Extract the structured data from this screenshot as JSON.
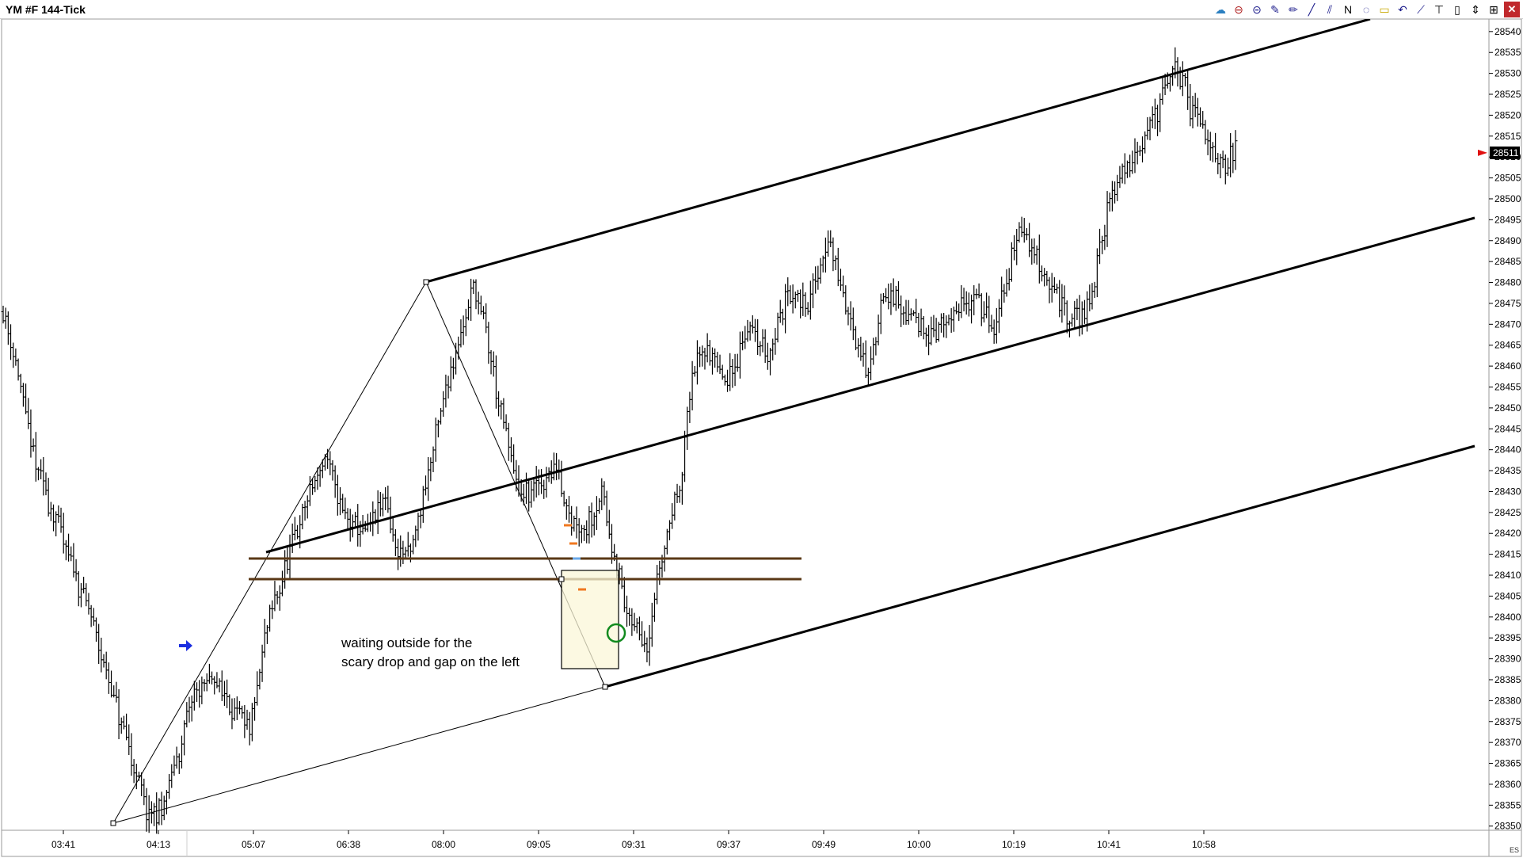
{
  "window": {
    "title": "YM #F 144-Tick"
  },
  "toolbar": [
    {
      "name": "data-series-icon",
      "glyph": "☁",
      "color": "#2a7fc0"
    },
    {
      "name": "indicators-icon",
      "glyph": "⊖",
      "color": "#b02020"
    },
    {
      "name": "strategy-icon",
      "glyph": "⊝",
      "color": "#1a1a8a"
    },
    {
      "name": "chart-trader-icon",
      "glyph": "✎",
      "color": "#1a1a8a"
    },
    {
      "name": "pencil-icon",
      "glyph": "✏",
      "color": "#1a1a8a"
    },
    {
      "name": "line-tool-icon",
      "glyph": "╱",
      "color": "#1a1a8a"
    },
    {
      "name": "channel-tool-icon",
      "glyph": "⫽",
      "color": "#1a1a8a"
    },
    {
      "name": "text-tool-icon",
      "glyph": "N",
      "color": "#000000"
    },
    {
      "name": "ellipse-tool-icon",
      "glyph": "◌",
      "color": "#1a1a8a"
    },
    {
      "name": "rectangle-tool-icon",
      "glyph": "▭",
      "color": "#c8a800"
    },
    {
      "name": "arc-tool-icon",
      "glyph": "↶",
      "color": "#1a1a8a"
    },
    {
      "name": "zigzag-tool-icon",
      "glyph": "⟋",
      "color": "#1a1a8a"
    },
    {
      "name": "ruler-tool-icon",
      "glyph": "⊤",
      "color": "#000000"
    },
    {
      "name": "lock-icon",
      "glyph": "▯",
      "color": "#000000"
    },
    {
      "name": "pan-icon",
      "glyph": "⇕",
      "color": "#000000"
    },
    {
      "name": "zoom-icon",
      "glyph": "⊞",
      "color": "#000000"
    },
    {
      "name": "close-icon",
      "glyph": "✕",
      "color": "#ffffff"
    }
  ],
  "annotation": {
    "line1": "waiting outside for the",
    "line2": "scary drop and gap on the left"
  },
  "right_marker": "ES",
  "chart_data": {
    "type": "ohlc",
    "title": "YM #F 144-Tick",
    "ylim": [
      28349,
      28543
    ],
    "y_ticks": [
      28350,
      28355,
      28360,
      28365,
      28370,
      28375,
      28380,
      28385,
      28390,
      28395,
      28400,
      28405,
      28410,
      28415,
      28420,
      28425,
      28430,
      28435,
      28440,
      28445,
      28450,
      28455,
      28460,
      28465,
      28470,
      28475,
      28480,
      28485,
      28490,
      28495,
      28500,
      28505,
      28510,
      28515,
      28520,
      28525,
      28530,
      28535,
      28540
    ],
    "x_labels": [
      "03:41",
      "04:13",
      "05:07",
      "06:38",
      "08:00",
      "09:05",
      "09:31",
      "09:37",
      "09:49",
      "10:00",
      "10:19",
      "10:41",
      "10:58"
    ],
    "last_price": "28511",
    "bar_count": 300,
    "path": [
      [
        0,
        28473
      ],
      [
        4,
        28464
      ],
      [
        12,
        28438
      ],
      [
        24,
        28418
      ],
      [
        35,
        28400
      ],
      [
        45,
        28378
      ],
      [
        52,
        28364
      ],
      [
        58,
        28352
      ],
      [
        63,
        28354
      ],
      [
        70,
        28368
      ],
      [
        76,
        28382
      ],
      [
        84,
        28385
      ],
      [
        92,
        28378
      ],
      [
        98,
        28372
      ],
      [
        105,
        28398
      ],
      [
        114,
        28415
      ],
      [
        122,
        28430
      ],
      [
        128,
        28438
      ],
      [
        136,
        28424
      ],
      [
        144,
        28420
      ],
      [
        152,
        28428
      ],
      [
        156,
        28416
      ],
      [
        162,
        28415
      ],
      [
        170,
        28438
      ],
      [
        178,
        28460
      ],
      [
        184,
        28472
      ],
      [
        187,
        28480
      ],
      [
        192,
        28468
      ],
      [
        198,
        28448
      ],
      [
        206,
        28428
      ],
      [
        214,
        28432
      ],
      [
        220,
        28436
      ],
      [
        226,
        28423
      ],
      [
        232,
        28422
      ],
      [
        238,
        28430
      ],
      [
        242,
        28418
      ],
      [
        248,
        28400
      ],
      [
        252,
        28397
      ],
      [
        256,
        28394
      ],
      [
        260,
        28408
      ],
      [
        264,
        28420
      ],
      [
        270,
        28436
      ],
      [
        274,
        28458
      ],
      [
        280,
        28465
      ],
      [
        288,
        28455
      ],
      [
        296,
        28470
      ],
      [
        304,
        28462
      ],
      [
        312,
        28478
      ],
      [
        320,
        28475
      ],
      [
        328,
        28490
      ],
      [
        336,
        28472
      ],
      [
        344,
        28458
      ],
      [
        350,
        28478
      ],
      [
        360,
        28472
      ],
      [
        368,
        28468
      ],
      [
        376,
        28470
      ],
      [
        386,
        28478
      ],
      [
        394,
        28468
      ],
      [
        404,
        28493
      ],
      [
        414,
        28483
      ],
      [
        424,
        28470
      ],
      [
        432,
        28475
      ],
      [
        440,
        28500
      ],
      [
        450,
        28512
      ],
      [
        460,
        28522
      ],
      [
        466,
        28533
      ],
      [
        472,
        28522
      ],
      [
        478,
        28516
      ],
      [
        484,
        28508
      ],
      [
        490,
        28511
      ]
    ]
  }
}
